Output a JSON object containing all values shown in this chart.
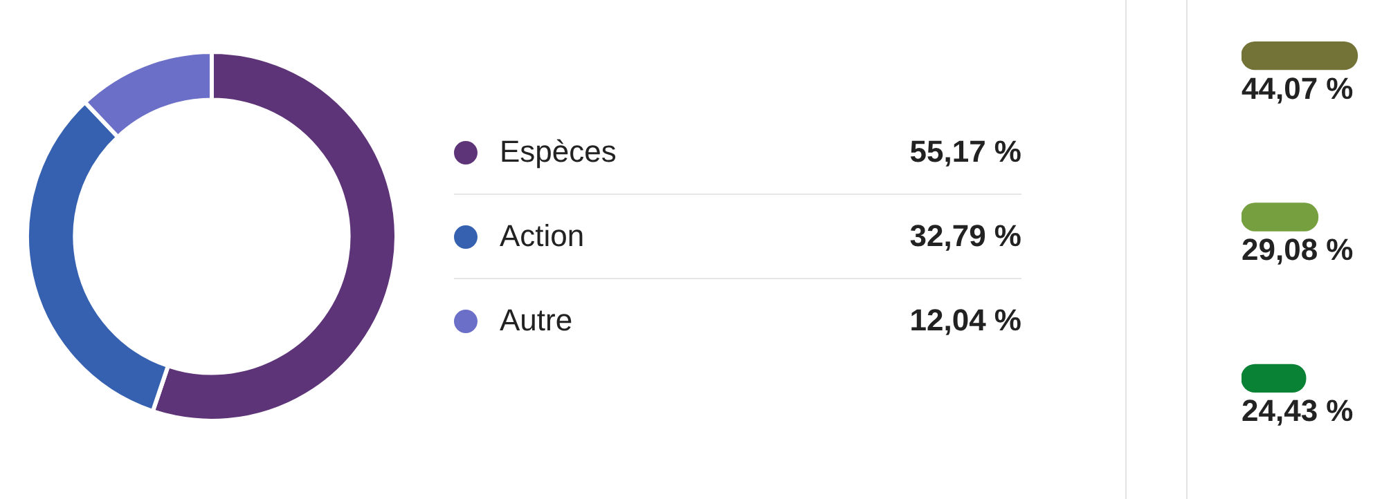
{
  "chart_data": [
    {
      "type": "donut",
      "categories": [
        "Espèces",
        "Action",
        "Autre"
      ],
      "values": [
        55.17,
        32.79,
        12.04
      ],
      "colors": [
        "#5e3478",
        "#3561b0",
        "#6b6fc8"
      ],
      "value_labels": [
        "55,17 %",
        "32,79 %",
        "12,04 %"
      ],
      "legend": "right"
    },
    {
      "type": "bar",
      "orientation": "horizontal",
      "categories": [
        null,
        null,
        null
      ],
      "values": [
        44.07,
        29.08,
        24.43
      ],
      "colors": [
        "#737337",
        "#76a040",
        "#0a8236"
      ],
      "value_labels": [
        "44,07 %",
        "29,08 %",
        "24,43 %"
      ]
    }
  ]
}
